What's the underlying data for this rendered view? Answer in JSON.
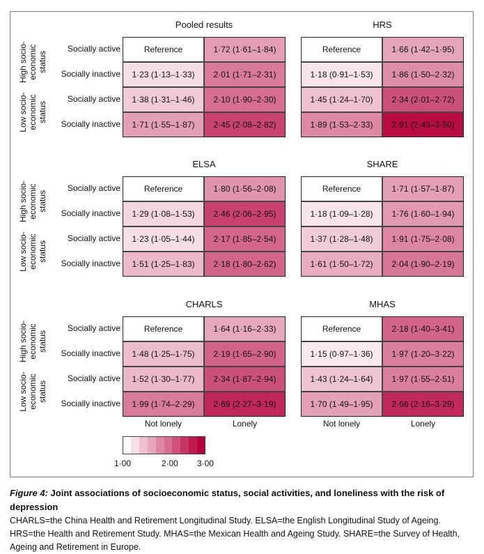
{
  "chart_data": {
    "type": "heatmap",
    "columns": [
      "Not lonely",
      "Lonely"
    ],
    "rows": [
      "Socially active",
      "Socially inactive",
      "Socially active",
      "Socially inactive"
    ],
    "row_groups": [
      "High socio-economic status",
      "Low socio-economic status"
    ],
    "color_scale": {
      "min": 1.0,
      "max": 3.0,
      "low_color": "#ffffff",
      "high_color": "#b5003a",
      "ticks": [
        "1·00",
        "2·00",
        "3·00"
      ],
      "steps": 10
    },
    "panels": [
      {
        "title": "Pooled results",
        "cells": [
          [
            {
              "text": "Reference",
              "value": 1.0
            },
            {
              "text": "1·72 (1·61–1·84)",
              "value": 1.72
            }
          ],
          [
            {
              "text": "1·23 (1·13–1·33)",
              "value": 1.23
            },
            {
              "text": "2·01 (1·71–2·31)",
              "value": 2.01
            }
          ],
          [
            {
              "text": "1·38 (1·31–1·46)",
              "value": 1.38
            },
            {
              "text": "2·10 (1·90–2·30)",
              "value": 2.1
            }
          ],
          [
            {
              "text": "1·71 (1·55–1·87)",
              "value": 1.71
            },
            {
              "text": "2·45 (2·08–2·82)",
              "value": 2.45
            }
          ]
        ]
      },
      {
        "title": "HRS",
        "cells": [
          [
            {
              "text": "Reference",
              "value": 1.0
            },
            {
              "text": "1·66 (1·42–1·95)",
              "value": 1.66
            }
          ],
          [
            {
              "text": "1·18 (0·91–1·53)",
              "value": 1.18
            },
            {
              "text": "1·86 (1·50–2·32)",
              "value": 1.86
            }
          ],
          [
            {
              "text": "1·45 (1·24–1·70)",
              "value": 1.45
            },
            {
              "text": "2·34 (2·01–2·72)",
              "value": 2.34
            }
          ],
          [
            {
              "text": "1·89 (1·53–2·33)",
              "value": 1.89
            },
            {
              "text": "2·91 (2·43–3·50)",
              "value": 2.91
            }
          ]
        ]
      },
      {
        "title": "ELSA",
        "cells": [
          [
            {
              "text": "Reference",
              "value": 1.0
            },
            {
              "text": "1·80 (1·56–2·08)",
              "value": 1.8
            }
          ],
          [
            {
              "text": "1·29 (1·08–1·53)",
              "value": 1.29
            },
            {
              "text": "2·46 (2·06–2·95)",
              "value": 2.46
            }
          ],
          [
            {
              "text": "1·23 (1·05–1·44)",
              "value": 1.23
            },
            {
              "text": "2·17 (1·85–2·54)",
              "value": 2.17
            }
          ],
          [
            {
              "text": "1·51 (1·25–1·83)",
              "value": 1.51
            },
            {
              "text": "2·18 (1·80–2·62)",
              "value": 2.18
            }
          ]
        ]
      },
      {
        "title": "SHARE",
        "cells": [
          [
            {
              "text": "Reference",
              "value": 1.0
            },
            {
              "text": "1·71 (1·57–1·87)",
              "value": 1.71
            }
          ],
          [
            {
              "text": "1·18 (1·09–1·28)",
              "value": 1.18
            },
            {
              "text": "1·76 (1·60–1·94)",
              "value": 1.76
            }
          ],
          [
            {
              "text": "1·37 (1·28–1·48)",
              "value": 1.37
            },
            {
              "text": "1·91 (1·75–2·08)",
              "value": 1.91
            }
          ],
          [
            {
              "text": "1·61 (1·50–1·72)",
              "value": 1.61
            },
            {
              "text": "2·04 (1·90–2·19)",
              "value": 2.04
            }
          ]
        ]
      },
      {
        "title": "CHARLS",
        "cells": [
          [
            {
              "text": "Reference",
              "value": 1.0
            },
            {
              "text": "1·64 (1·16–2·33)",
              "value": 1.64
            }
          ],
          [
            {
              "text": "1·48 (1·25–1·75)",
              "value": 1.48
            },
            {
              "text": "2·19 (1·65–2·90)",
              "value": 2.19
            }
          ],
          [
            {
              "text": "1·52 (1·30–1·77)",
              "value": 1.52
            },
            {
              "text": "2·34 (1·87–2·94)",
              "value": 2.34
            }
          ],
          [
            {
              "text": "1·99 (1·74–2·29)",
              "value": 1.99
            },
            {
              "text": "2·69 (2·27–3·19)",
              "value": 2.69
            }
          ]
        ]
      },
      {
        "title": "MHAS",
        "cells": [
          [
            {
              "text": "Reference",
              "value": 1.0
            },
            {
              "text": "2·18 (1·40–3·41)",
              "value": 2.18
            }
          ],
          [
            {
              "text": "1·15 (0·97–1·36)",
              "value": 1.15
            },
            {
              "text": "1·97 (1·20–3·22)",
              "value": 1.97
            }
          ],
          [
            {
              "text": "1·43 (1·24–1·64)",
              "value": 1.43
            },
            {
              "text": "1·97 (1·55–2·51)",
              "value": 1.97
            }
          ],
          [
            {
              "text": "1·70 (1·49–1·95)",
              "value": 1.7
            },
            {
              "text": "2·66 (2·16–3·29)",
              "value": 2.66
            }
          ]
        ]
      }
    ]
  },
  "caption": {
    "label": "Figure 4:",
    "title": "Joint associations of socioeconomic status, social activities, and loneliness with the risk of depression",
    "text": "CHARLS=the China Health and Retirement Longitudinal Study. ELSA=the English Longitudinal Study of Ageing. HRS=the Health and Retirement Study. MHAS=the Mexican Health and Ageing Study. SHARE=the Survey of Health, Ageing and Retirement in Europe."
  }
}
